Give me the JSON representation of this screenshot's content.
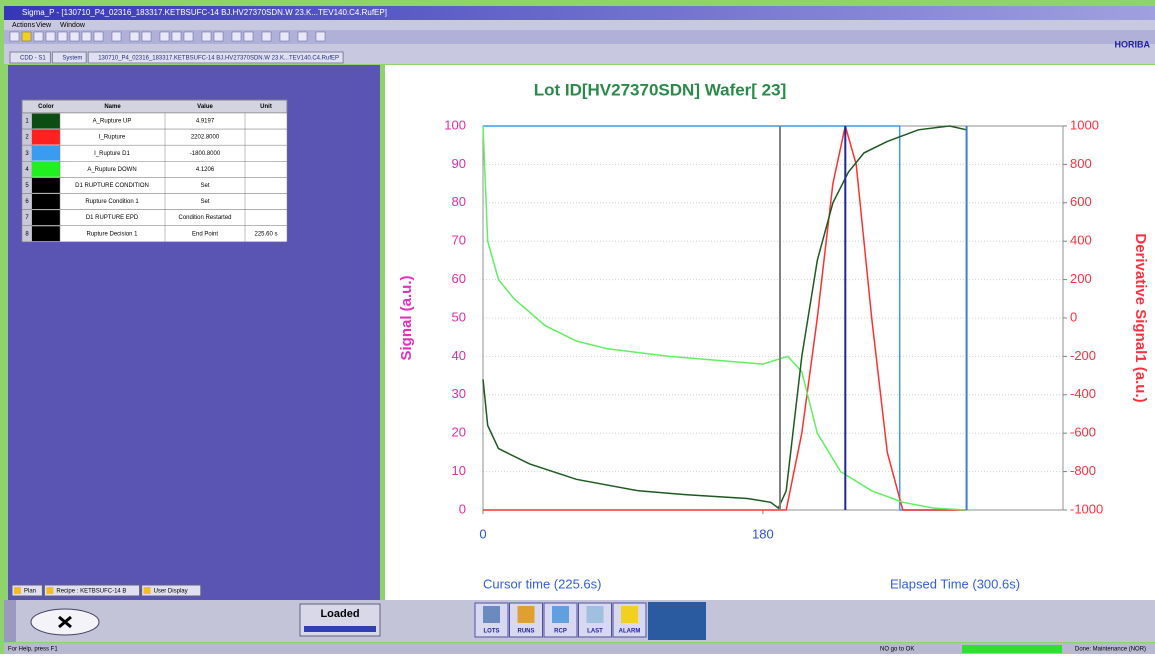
{
  "window": {
    "title": "Sigma_P - [130710_P4_02316_183317.KETBSUFC-14 BJ.HV27370SDN.W 23.K...TEV140.C4.RufEP]",
    "menu": [
      "Actions",
      "View",
      "Window"
    ],
    "tabs": [
      "CDD - S1",
      "System",
      "130710_P4_02316_183317.KETBSUFC-14 BJ.HV27370SDN.W 23.K...TEV140.C4.RufEP"
    ],
    "brand": "HORIBA"
  },
  "table": {
    "headers": [
      "Color",
      "Name",
      "Value",
      "Unit"
    ],
    "rows": [
      {
        "index": 1,
        "color": "#0b4d12",
        "name": "A_Rupture UP",
        "value": "4.9197"
      },
      {
        "index": 2,
        "color": "#ff2020",
        "name": "I_Rupture",
        "value": "2202.8000"
      },
      {
        "index": 3,
        "color": "#3a9cf0",
        "name": "I_Rupture D1",
        "value": "-1800.8000"
      },
      {
        "index": 4,
        "color": "#20f020",
        "name": "A_Rupture DOWN",
        "value": "4.1206"
      },
      {
        "index": 5,
        "color": "#000000",
        "name": "D1 RUPTURE CONDITION",
        "value": "Set"
      },
      {
        "index": 6,
        "color": "#000000",
        "name": "Rupture Condition 1",
        "value": "Set"
      },
      {
        "index": 7,
        "color": "#000000",
        "name": "D1 RUPTURE EPD",
        "value": "Condition Restarted"
      },
      {
        "index": 8,
        "color": "#000000",
        "name": "Rupture Decision 1",
        "value": "End Point",
        "unit": "225.60 s"
      }
    ]
  },
  "bottom_tabs": [
    "Plan",
    "Recipe : KETBSUFC-14 B",
    "User Display"
  ],
  "chart_data": {
    "type": "line",
    "title": "Lot ID[HV27370SDN]  Wafer[ 23]",
    "ylabel": "Signal (a.u.)",
    "y2label": "Derivative Signal1 (a.u.)",
    "cursor_label": "Cursor time (225.6s)",
    "elapsed_label": "Elapsed Time (300.6s)",
    "xlim": [
      0,
      373
    ],
    "xticks": [
      0,
      180
    ],
    "ylim": [
      0,
      100
    ],
    "yticks": [
      0,
      10,
      20,
      30,
      40,
      50,
      60,
      70,
      80,
      90,
      100
    ],
    "y2lim": [
      -1000,
      1000
    ],
    "y2ticks": [
      -1000,
      -800,
      -600,
      -400,
      -200,
      0,
      200,
      400,
      600,
      800,
      1000
    ],
    "grid": true,
    "series": [
      {
        "color": "#3a9cf0",
        "x": [
          0,
          268,
          268,
          311
        ],
        "values": [
          100,
          100,
          0,
          0
        ]
      },
      {
        "color": "#ff3030",
        "axis": "y2",
        "x": [
          0,
          195,
          205,
          215,
          225,
          233,
          240,
          250,
          260,
          270,
          311
        ],
        "values": [
          -1000,
          -1000,
          -600,
          0,
          700,
          1000,
          800,
          0,
          -700,
          -1000,
          -1000
        ]
      },
      {
        "color": "#60f060",
        "x": [
          0,
          3,
          10,
          20,
          40,
          60,
          80,
          100,
          120,
          150,
          180,
          188,
          196,
          205,
          215,
          230,
          250,
          270,
          290,
          311
        ],
        "values": [
          100,
          70,
          60,
          55,
          48,
          44,
          42,
          41,
          40,
          39,
          38,
          39,
          40,
          36,
          20,
          10,
          5,
          2,
          0.5,
          0
        ]
      },
      {
        "color": "#1d5a20",
        "x": [
          0,
          3,
          10,
          30,
          60,
          100,
          130,
          170,
          185,
          190,
          195,
          205,
          215,
          225,
          235,
          245,
          260,
          280,
          300,
          311
        ],
        "values": [
          34,
          22,
          16,
          12,
          8,
          5,
          4,
          3,
          2,
          0.5,
          5,
          40,
          65,
          80,
          88,
          93,
          96,
          99,
          100,
          99
        ]
      }
    ],
    "cursors": [
      {
        "x": 191,
        "color": "#808080"
      },
      {
        "x": 233,
        "color": "#1a2a9a"
      },
      {
        "x": 311,
        "color": "#3a7be0"
      }
    ]
  },
  "controls": {
    "status": "Loaded",
    "buttons": [
      "LOTS",
      "RUNS",
      "RCP",
      "LAST",
      "ALARM"
    ]
  },
  "status_bar": {
    "help": "For Help, press F1",
    "message": "NO go to OK",
    "mode": "Done: Maintenance (NOR)"
  }
}
